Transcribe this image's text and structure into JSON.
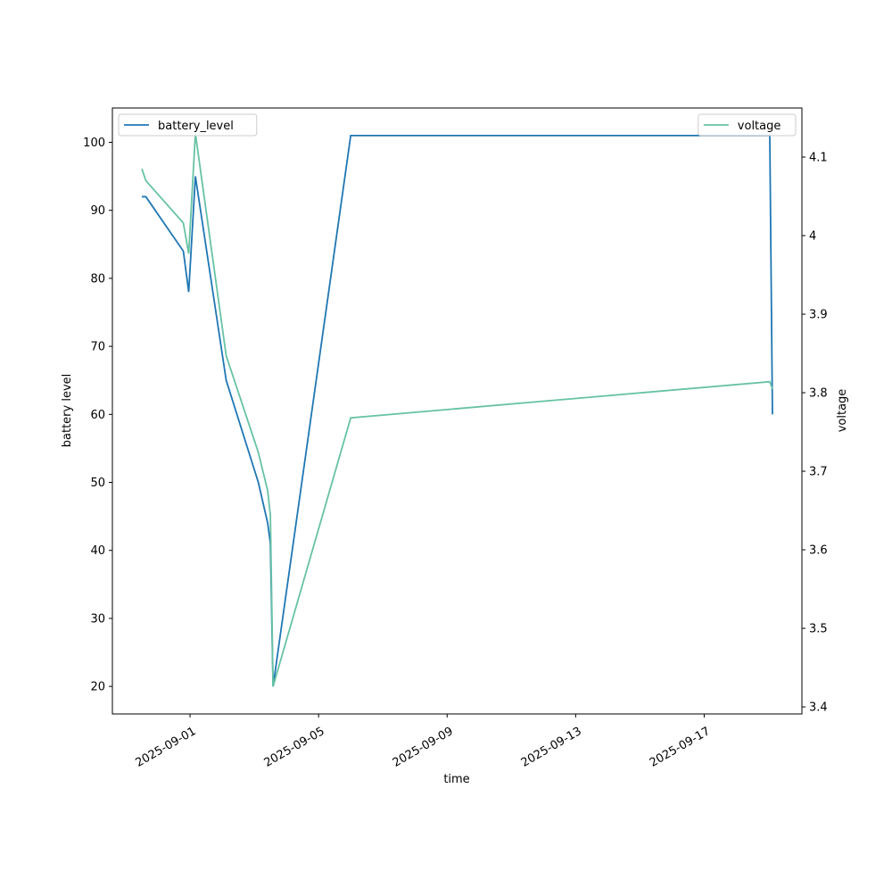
{
  "chart_data": {
    "type": "line",
    "xlabel": "time",
    "ylabel": "battery level",
    "y2label": "voltage",
    "x": [
      "2025-08-30T12:00",
      "2025-08-30T15:00",
      "2025-08-31T19:00",
      "2025-08-31T23:00",
      "2025-09-01T04:00",
      "2025-09-02T03:00",
      "2025-09-03T03:00",
      "2025-09-03T10:00",
      "2025-09-03T12:00",
      "2025-09-03T14:00",
      "2025-09-06T00:00",
      "2025-09-19T01:00",
      "2025-09-19T03:00"
    ],
    "series": [
      {
        "name": "battery_level",
        "color": "#1f77b4",
        "axis": "y",
        "legend_loc": "upper left",
        "values": [
          92,
          92,
          84,
          78,
          95,
          65,
          50,
          44,
          41,
          20,
          101,
          101,
          60
        ]
      },
      {
        "name": "voltage",
        "color": "#66c2a5",
        "axis": "y2",
        "legend_loc": "upper right",
        "values": [
          4.085,
          4.07,
          4.016,
          3.977,
          4.13,
          3.847,
          3.724,
          3.675,
          3.644,
          3.426,
          3.768,
          3.814,
          3.805
        ]
      }
    ],
    "xlim": [
      "2025-08-29T14:00",
      "2025-09-20T01:00"
    ],
    "xticks": [
      "2025-09-01",
      "2025-09-05",
      "2025-09-09",
      "2025-09-13",
      "2025-09-17"
    ],
    "ylim": [
      15.95,
      105.05
    ],
    "yticks": [
      20,
      30,
      40,
      50,
      60,
      70,
      80,
      90,
      100
    ],
    "y2lim": [
      3.391,
      4.1625
    ],
    "y2ticks": [
      3.4,
      3.5,
      3.6,
      3.7,
      3.8,
      3.9,
      4.0,
      4.1
    ],
    "grid": false
  }
}
